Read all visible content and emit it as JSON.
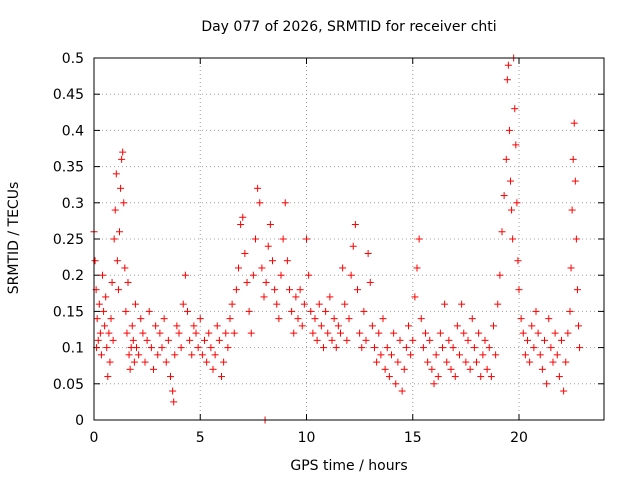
{
  "chart_data": {
    "type": "scatter",
    "title": "Day 077 of 2026, SRMTID for receiver chti",
    "xlabel": "GPS time / hours",
    "ylabel": "SRMTID / TECUs",
    "xlim": [
      0,
      24
    ],
    "ylim": [
      0,
      0.5
    ],
    "x_ticks": [
      0,
      5,
      10,
      15,
      20
    ],
    "x_tick_labels": [
      "0",
      "5",
      "10",
      "15",
      "20"
    ],
    "y_ticks": [
      0,
      0.05,
      0.1,
      0.15,
      0.2,
      0.25,
      0.3,
      0.35,
      0.4,
      0.45,
      0.5
    ],
    "y_tick_labels": [
      "0",
      "0.05",
      "0.1",
      "0.15",
      "0.2",
      "0.25",
      "0.3",
      "0.35",
      "0.4",
      "0.45",
      "0.5"
    ],
    "grid": true,
    "marker": "+",
    "series": [
      {
        "name": "SRMTID",
        "color": "#ff0000",
        "points": [
          [
            0.0,
            0.26
          ],
          [
            0.05,
            0.22
          ],
          [
            0.1,
            0.18
          ],
          [
            0.12,
            0.1
          ],
          [
            0.15,
            0.14
          ],
          [
            0.2,
            0.11
          ],
          [
            0.25,
            0.16
          ],
          [
            0.3,
            0.12
          ],
          [
            0.35,
            0.09
          ],
          [
            0.4,
            0.2
          ],
          [
            0.45,
            0.15
          ],
          [
            0.5,
            0.13
          ],
          [
            0.55,
            0.17
          ],
          [
            0.6,
            0.1
          ],
          [
            0.65,
            0.06
          ],
          [
            0.7,
            0.12
          ],
          [
            0.75,
            0.08
          ],
          [
            0.8,
            0.14
          ],
          [
            0.85,
            0.19
          ],
          [
            0.9,
            0.11
          ],
          [
            0.95,
            0.25
          ],
          [
            1.0,
            0.29
          ],
          [
            1.05,
            0.34
          ],
          [
            1.1,
            0.22
          ],
          [
            1.15,
            0.18
          ],
          [
            1.2,
            0.26
          ],
          [
            1.25,
            0.32
          ],
          [
            1.3,
            0.36
          ],
          [
            1.35,
            0.37
          ],
          [
            1.4,
            0.3
          ],
          [
            1.45,
            0.21
          ],
          [
            1.5,
            0.15
          ],
          [
            1.55,
            0.12
          ],
          [
            1.6,
            0.19
          ],
          [
            1.65,
            0.09
          ],
          [
            1.7,
            0.07
          ],
          [
            1.75,
            0.1
          ],
          [
            1.8,
            0.13
          ],
          [
            1.85,
            0.11
          ],
          [
            1.9,
            0.08
          ],
          [
            1.95,
            0.16
          ],
          [
            2.0,
            0.1
          ],
          [
            2.1,
            0.09
          ],
          [
            2.2,
            0.14
          ],
          [
            2.3,
            0.12
          ],
          [
            2.4,
            0.08
          ],
          [
            2.5,
            0.11
          ],
          [
            2.6,
            0.15
          ],
          [
            2.7,
            0.1
          ],
          [
            2.8,
            0.07
          ],
          [
            2.9,
            0.13
          ],
          [
            3.0,
            0.09
          ],
          [
            3.1,
            0.12
          ],
          [
            3.2,
            0.1
          ],
          [
            3.3,
            0.14
          ],
          [
            3.4,
            0.08
          ],
          [
            3.5,
            0.11
          ],
          [
            3.6,
            0.06
          ],
          [
            3.7,
            0.04
          ],
          [
            3.75,
            0.025
          ],
          [
            3.8,
            0.09
          ],
          [
            3.9,
            0.13
          ],
          [
            4.0,
            0.12
          ],
          [
            4.1,
            0.1
          ],
          [
            4.2,
            0.16
          ],
          [
            4.3,
            0.2
          ],
          [
            4.4,
            0.15
          ],
          [
            4.5,
            0.11
          ],
          [
            4.6,
            0.09
          ],
          [
            4.7,
            0.13
          ],
          [
            4.8,
            0.12
          ],
          [
            4.9,
            0.1
          ],
          [
            5.0,
            0.14
          ],
          [
            5.1,
            0.09
          ],
          [
            5.2,
            0.11
          ],
          [
            5.3,
            0.08
          ],
          [
            5.4,
            0.12
          ],
          [
            5.5,
            0.1
          ],
          [
            5.6,
            0.07
          ],
          [
            5.7,
            0.09
          ],
          [
            5.8,
            0.13
          ],
          [
            5.9,
            0.11
          ],
          [
            6.0,
            0.06
          ],
          [
            6.1,
            0.08
          ],
          [
            6.2,
            0.12
          ],
          [
            6.3,
            0.1
          ],
          [
            6.4,
            0.14
          ],
          [
            6.5,
            0.16
          ],
          [
            6.6,
            0.12
          ],
          [
            6.7,
            0.18
          ],
          [
            6.8,
            0.21
          ],
          [
            6.9,
            0.27
          ],
          [
            7.0,
            0.28
          ],
          [
            7.1,
            0.23
          ],
          [
            7.2,
            0.19
          ],
          [
            7.3,
            0.15
          ],
          [
            7.4,
            0.12
          ],
          [
            7.5,
            0.2
          ],
          [
            7.6,
            0.25
          ],
          [
            7.7,
            0.32
          ],
          [
            7.8,
            0.3
          ],
          [
            7.9,
            0.21
          ],
          [
            8.0,
            0.17
          ],
          [
            8.05,
            0.0
          ],
          [
            8.1,
            0.19
          ],
          [
            8.2,
            0.24
          ],
          [
            8.3,
            0.27
          ],
          [
            8.4,
            0.22
          ],
          [
            8.5,
            0.18
          ],
          [
            8.6,
            0.16
          ],
          [
            8.7,
            0.14
          ],
          [
            8.8,
            0.2
          ],
          [
            8.9,
            0.25
          ],
          [
            9.0,
            0.3
          ],
          [
            9.1,
            0.22
          ],
          [
            9.2,
            0.18
          ],
          [
            9.3,
            0.15
          ],
          [
            9.4,
            0.12
          ],
          [
            9.5,
            0.17
          ],
          [
            9.6,
            0.14
          ],
          [
            9.7,
            0.18
          ],
          [
            9.8,
            0.13
          ],
          [
            9.9,
            0.16
          ],
          [
            10.0,
            0.25
          ],
          [
            10.1,
            0.2
          ],
          [
            10.2,
            0.15
          ],
          [
            10.3,
            0.12
          ],
          [
            10.4,
            0.14
          ],
          [
            10.5,
            0.11
          ],
          [
            10.6,
            0.16
          ],
          [
            10.7,
            0.13
          ],
          [
            10.8,
            0.1
          ],
          [
            10.9,
            0.15
          ],
          [
            11.0,
            0.12
          ],
          [
            11.1,
            0.17
          ],
          [
            11.2,
            0.11
          ],
          [
            11.3,
            0.14
          ],
          [
            11.4,
            0.1
          ],
          [
            11.5,
            0.13
          ],
          [
            11.6,
            0.12
          ],
          [
            11.7,
            0.21
          ],
          [
            11.8,
            0.16
          ],
          [
            11.9,
            0.11
          ],
          [
            12.0,
            0.14
          ],
          [
            12.1,
            0.2
          ],
          [
            12.2,
            0.24
          ],
          [
            12.3,
            0.27
          ],
          [
            12.4,
            0.18
          ],
          [
            12.5,
            0.12
          ],
          [
            12.6,
            0.1
          ],
          [
            12.7,
            0.15
          ],
          [
            12.8,
            0.11
          ],
          [
            12.9,
            0.23
          ],
          [
            13.0,
            0.19
          ],
          [
            13.1,
            0.13
          ],
          [
            13.2,
            0.1
          ],
          [
            13.3,
            0.08
          ],
          [
            13.4,
            0.12
          ],
          [
            13.5,
            0.09
          ],
          [
            13.6,
            0.14
          ],
          [
            13.7,
            0.07
          ],
          [
            13.8,
            0.1
          ],
          [
            13.9,
            0.06
          ],
          [
            14.0,
            0.09
          ],
          [
            14.1,
            0.12
          ],
          [
            14.2,
            0.05
          ],
          [
            14.3,
            0.08
          ],
          [
            14.4,
            0.11
          ],
          [
            14.5,
            0.04
          ],
          [
            14.6,
            0.07
          ],
          [
            14.7,
            0.1
          ],
          [
            14.8,
            0.13
          ],
          [
            14.9,
            0.09
          ],
          [
            15.0,
            0.11
          ],
          [
            15.1,
            0.17
          ],
          [
            15.2,
            0.21
          ],
          [
            15.3,
            0.25
          ],
          [
            15.4,
            0.14
          ],
          [
            15.5,
            0.1
          ],
          [
            15.6,
            0.12
          ],
          [
            15.7,
            0.08
          ],
          [
            15.8,
            0.11
          ],
          [
            15.9,
            0.07
          ],
          [
            16.0,
            0.05
          ],
          [
            16.1,
            0.09
          ],
          [
            16.2,
            0.06
          ],
          [
            16.3,
            0.12
          ],
          [
            16.4,
            0.1
          ],
          [
            16.5,
            0.16
          ],
          [
            16.6,
            0.08
          ],
          [
            16.7,
            0.11
          ],
          [
            16.8,
            0.07
          ],
          [
            16.9,
            0.1
          ],
          [
            17.0,
            0.06
          ],
          [
            17.1,
            0.13
          ],
          [
            17.2,
            0.09
          ],
          [
            17.3,
            0.16
          ],
          [
            17.4,
            0.12
          ],
          [
            17.5,
            0.08
          ],
          [
            17.6,
            0.11
          ],
          [
            17.7,
            0.07
          ],
          [
            17.8,
            0.14
          ],
          [
            17.9,
            0.1
          ],
          [
            18.0,
            0.08
          ],
          [
            18.1,
            0.12
          ],
          [
            18.2,
            0.06
          ],
          [
            18.3,
            0.09
          ],
          [
            18.4,
            0.11
          ],
          [
            18.5,
            0.07
          ],
          [
            18.6,
            0.1
          ],
          [
            18.7,
            0.06
          ],
          [
            18.8,
            0.13
          ],
          [
            18.9,
            0.09
          ],
          [
            19.0,
            0.16
          ],
          [
            19.1,
            0.2
          ],
          [
            19.2,
            0.26
          ],
          [
            19.3,
            0.31
          ],
          [
            19.4,
            0.36
          ],
          [
            19.45,
            0.47
          ],
          [
            19.5,
            0.49
          ],
          [
            19.55,
            0.4
          ],
          [
            19.6,
            0.33
          ],
          [
            19.65,
            0.29
          ],
          [
            19.7,
            0.25
          ],
          [
            19.75,
            0.5
          ],
          [
            19.8,
            0.43
          ],
          [
            19.85,
            0.38
          ],
          [
            19.9,
            0.3
          ],
          [
            19.95,
            0.22
          ],
          [
            20.0,
            0.18
          ],
          [
            20.1,
            0.14
          ],
          [
            20.2,
            0.12
          ],
          [
            20.3,
            0.09
          ],
          [
            20.4,
            0.11
          ],
          [
            20.5,
            0.08
          ],
          [
            20.6,
            0.13
          ],
          [
            20.7,
            0.1
          ],
          [
            20.8,
            0.15
          ],
          [
            20.9,
            0.12
          ],
          [
            21.0,
            0.09
          ],
          [
            21.1,
            0.07
          ],
          [
            21.2,
            0.11
          ],
          [
            21.3,
            0.05
          ],
          [
            21.4,
            0.14
          ],
          [
            21.5,
            0.1
          ],
          [
            21.6,
            0.08
          ],
          [
            21.7,
            0.12
          ],
          [
            21.8,
            0.09
          ],
          [
            21.9,
            0.06
          ],
          [
            22.0,
            0.11
          ],
          [
            22.1,
            0.04
          ],
          [
            22.2,
            0.08
          ],
          [
            22.3,
            0.12
          ],
          [
            22.4,
            0.15
          ],
          [
            22.45,
            0.21
          ],
          [
            22.5,
            0.29
          ],
          [
            22.55,
            0.36
          ],
          [
            22.6,
            0.41
          ],
          [
            22.65,
            0.33
          ],
          [
            22.7,
            0.25
          ],
          [
            22.75,
            0.18
          ],
          [
            22.8,
            0.13
          ],
          [
            22.85,
            0.1
          ]
        ]
      }
    ]
  }
}
